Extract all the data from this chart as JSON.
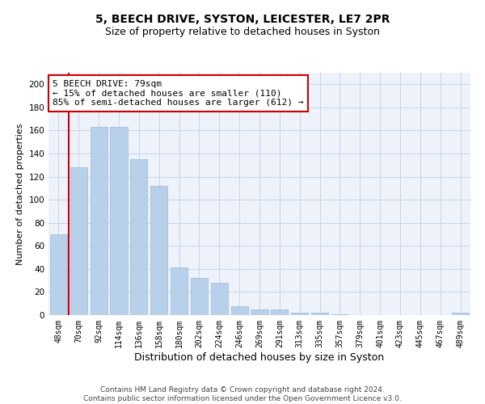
{
  "title1": "5, BEECH DRIVE, SYSTON, LEICESTER, LE7 2PR",
  "title2": "Size of property relative to detached houses in Syston",
  "xlabel": "Distribution of detached houses by size in Syston",
  "ylabel": "Number of detached properties",
  "bins": [
    "48sqm",
    "70sqm",
    "92sqm",
    "114sqm",
    "136sqm",
    "158sqm",
    "180sqm",
    "202sqm",
    "224sqm",
    "246sqm",
    "269sqm",
    "291sqm",
    "313sqm",
    "335sqm",
    "357sqm",
    "379sqm",
    "401sqm",
    "423sqm",
    "445sqm",
    "467sqm",
    "489sqm"
  ],
  "values": [
    70,
    128,
    163,
    163,
    135,
    112,
    41,
    32,
    28,
    8,
    5,
    5,
    2,
    2,
    1,
    0,
    0,
    0,
    0,
    0,
    2
  ],
  "bar_color": "#b8d0ea",
  "bar_edge_color": "#9ab8d8",
  "annotation_text": "5 BEECH DRIVE: 79sqm\n← 15% of detached houses are smaller (110)\n85% of semi-detached houses are larger (612) →",
  "annotation_box_color": "#ffffff",
  "annotation_box_edge_color": "#cc0000",
  "vline_color": "#cc0000",
  "vline_bar_index": 1,
  "ylim": [
    0,
    210
  ],
  "yticks": [
    0,
    20,
    40,
    60,
    80,
    100,
    120,
    140,
    160,
    180,
    200
  ],
  "grid_color": "#c8d4e8",
  "background_color": "#eef2fa",
  "footer": "Contains HM Land Registry data © Crown copyright and database right 2024.\nContains public sector information licensed under the Open Government Licence v3.0.",
  "title1_fontsize": 10,
  "title2_fontsize": 9,
  "xlabel_fontsize": 9,
  "ylabel_fontsize": 8,
  "annotation_fontsize": 8,
  "footer_fontsize": 6.5,
  "tick_fontsize": 7
}
